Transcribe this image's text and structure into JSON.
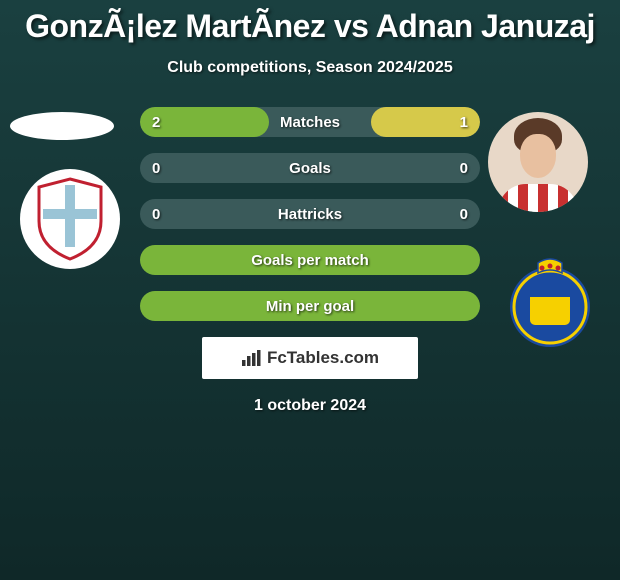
{
  "title": "GonzÃ¡lez MartÃ­nez vs Adnan Januzaj",
  "subtitle": "Club competitions, Season 2024/2025",
  "date": "1 october 2024",
  "brand": "FcTables.com",
  "colors": {
    "green": "#7ab53a",
    "yellow": "#d6c94a",
    "track": "#3a5a5a",
    "crest_left_cross": "#9ac4d6",
    "crest_right_bg": "#1a4aa0",
    "crest_right_accent": "#f6d000"
  },
  "stats": [
    {
      "label": "Matches",
      "left_value": "2",
      "right_value": "1",
      "left_pct": 38,
      "right_pct": 32,
      "left_color": "#7ab53a",
      "right_color": "#d6c94a"
    },
    {
      "label": "Goals",
      "left_value": "0",
      "right_value": "0",
      "left_pct": 0,
      "right_pct": 0,
      "left_color": "#7ab53a",
      "right_color": "#d6c94a"
    },
    {
      "label": "Hattricks",
      "left_value": "0",
      "right_value": "0",
      "left_pct": 0,
      "right_pct": 0,
      "left_color": "#7ab53a",
      "right_color": "#d6c94a"
    }
  ],
  "full_stats": [
    {
      "label": "Goals per match",
      "color": "#7ab53a"
    },
    {
      "label": "Min per goal",
      "color": "#7ab53a"
    }
  ]
}
